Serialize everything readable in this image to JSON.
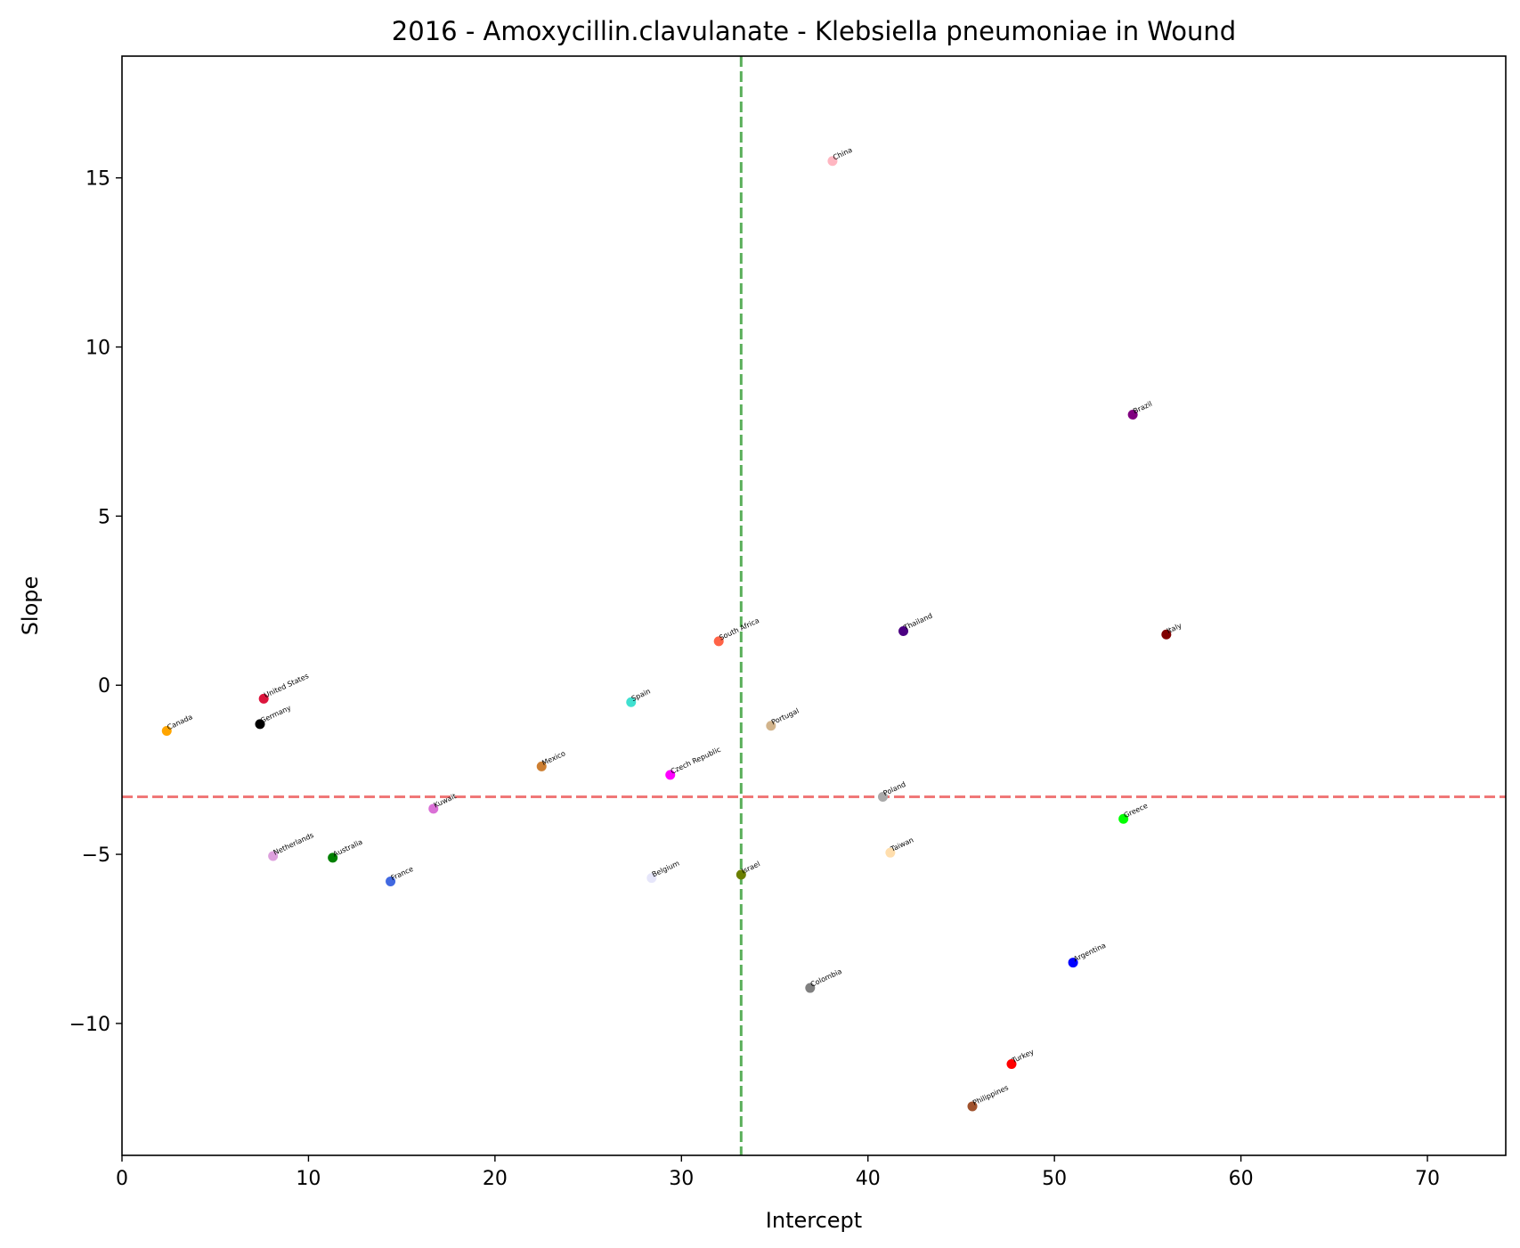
{
  "chart_data": {
    "type": "scatter",
    "title": "2016 - Amoxycillin.clavulanate - Klebsiella pneumoniae in Wound",
    "xlabel": "Intercept",
    "ylabel": "Slope",
    "xlim": [
      0,
      74.2
    ],
    "ylim": [
      -13.9,
      18.6
    ],
    "xticks": [
      0,
      10,
      20,
      30,
      40,
      50,
      60,
      70
    ],
    "yticks": [
      -10,
      -5,
      0,
      5,
      10,
      15
    ],
    "grid": false,
    "reference_lines": [
      {
        "orientation": "vertical",
        "value": 33.2,
        "color": "#5aaf5a",
        "style": "dashed"
      },
      {
        "orientation": "horizontal",
        "value": -3.3,
        "color": "#f07878",
        "style": "dashed"
      }
    ],
    "points": [
      {
        "label": "China",
        "x": 38.1,
        "y": 15.5,
        "color": "#ffb6c1"
      },
      {
        "label": "Brazil",
        "x": 54.2,
        "y": 8.0,
        "color": "#800080"
      },
      {
        "label": "South Africa",
        "x": 32.0,
        "y": 1.3,
        "color": "#ff6347"
      },
      {
        "label": "Thailand",
        "x": 41.9,
        "y": 1.6,
        "color": "#4b0082"
      },
      {
        "label": "Italy",
        "x": 56.0,
        "y": 1.5,
        "color": "#800000"
      },
      {
        "label": "United States",
        "x": 7.6,
        "y": -0.4,
        "color": "#dc143c"
      },
      {
        "label": "Spain",
        "x": 27.3,
        "y": -0.5,
        "color": "#40e0d0"
      },
      {
        "label": "Germany",
        "x": 7.4,
        "y": -1.15,
        "color": "#000000"
      },
      {
        "label": "Canada",
        "x": 2.4,
        "y": -1.35,
        "color": "#ffa500"
      },
      {
        "label": "Portugal",
        "x": 34.8,
        "y": -1.2,
        "color": "#d2b48c"
      },
      {
        "label": "Mexico",
        "x": 22.5,
        "y": -2.4,
        "color": "#cd7f32"
      },
      {
        "label": "Czech Republic",
        "x": 29.4,
        "y": -2.65,
        "color": "#ff00ff"
      },
      {
        "label": "Poland",
        "x": 40.8,
        "y": -3.3,
        "color": "#a9a9a9"
      },
      {
        "label": "Kuwait",
        "x": 16.7,
        "y": -3.65,
        "color": "#da70d6"
      },
      {
        "label": "Greece",
        "x": 53.7,
        "y": -3.95,
        "color": "#00ff00"
      },
      {
        "label": "Taiwan",
        "x": 41.2,
        "y": -4.95,
        "color": "#ffdead"
      },
      {
        "label": "Netherlands",
        "x": 8.1,
        "y": -5.05,
        "color": "#dda0dd"
      },
      {
        "label": "Australia",
        "x": 11.3,
        "y": -5.1,
        "color": "#008000"
      },
      {
        "label": "Israel",
        "x": 33.2,
        "y": -5.6,
        "color": "#6b7f00"
      },
      {
        "label": "Belgium",
        "x": 28.4,
        "y": -5.7,
        "color": "#e6e6fa"
      },
      {
        "label": "France",
        "x": 14.4,
        "y": -5.8,
        "color": "#4169e1"
      },
      {
        "label": "Argentina",
        "x": 51.0,
        "y": -8.2,
        "color": "#0000ff"
      },
      {
        "label": "Colombia",
        "x": 36.9,
        "y": -8.95,
        "color": "#808080"
      },
      {
        "label": "Turkey",
        "x": 47.7,
        "y": -11.2,
        "color": "#ff0000"
      },
      {
        "label": "Philippines",
        "x": 45.6,
        "y": -12.45,
        "color": "#a0522d"
      }
    ]
  }
}
